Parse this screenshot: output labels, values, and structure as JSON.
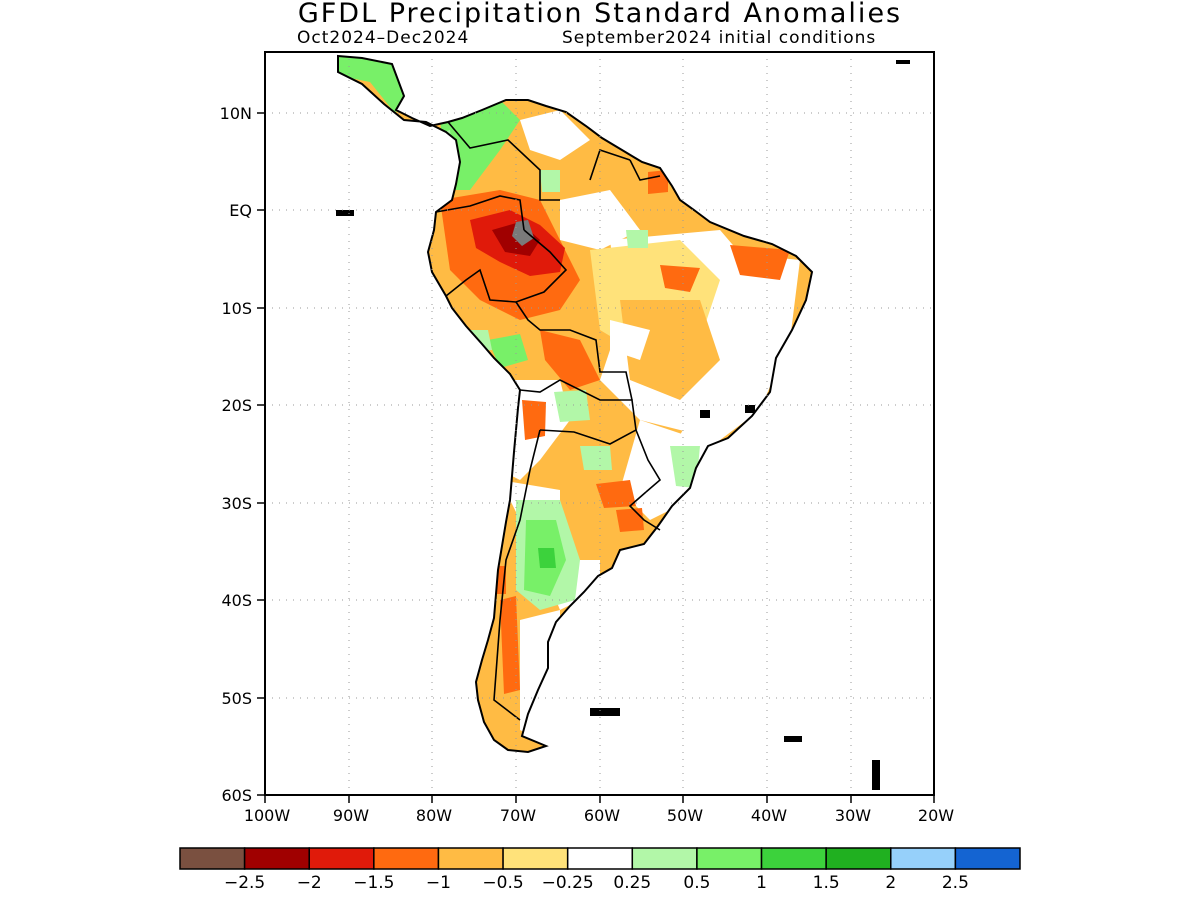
{
  "header": {
    "title": "GFDL Precipitation Standard Anomalies",
    "period": "Oct2024–Dec2024",
    "init": "September2024 initial conditions"
  },
  "axes": {
    "lat_labels": [
      "10N",
      "EQ",
      "10S",
      "20S",
      "30S",
      "40S",
      "50S",
      "60S"
    ],
    "lon_labels": [
      "100W",
      "90W",
      "80W",
      "70W",
      "60W",
      "50W",
      "40W",
      "30W",
      "20W"
    ]
  },
  "colorbar": {
    "colors": [
      "#7a5040",
      "#a00000",
      "#e01a0a",
      "#ff6a10",
      "#ffbb44",
      "#ffe27a",
      "#ffffff",
      "#b2f7a8",
      "#78f068",
      "#3cd23c",
      "#20b020",
      "#96d0fa",
      "#1464d2"
    ],
    "labels": [
      "−2.5",
      "−2",
      "−1.5",
      "−1",
      "−0.5",
      "−0.25",
      "0.25",
      "0.5",
      "1",
      "1.5",
      "2",
      "2.5"
    ]
  },
  "map": {
    "extent_lon": [
      -100,
      -20
    ],
    "extent_lat": [
      -60,
      16
    ],
    "gridlines": "dotted",
    "colors": {
      "land_default": "#ffbb44",
      "neutral": "#ffffff",
      "light_orange": "#ffe27a",
      "orange": "#ff6a10",
      "red": "#e01a0a",
      "dark_red": "#a00000",
      "gray": "#7a7a7a",
      "light_green": "#b2f7a8",
      "green": "#78f068",
      "mid_green": "#3cd23c"
    }
  }
}
